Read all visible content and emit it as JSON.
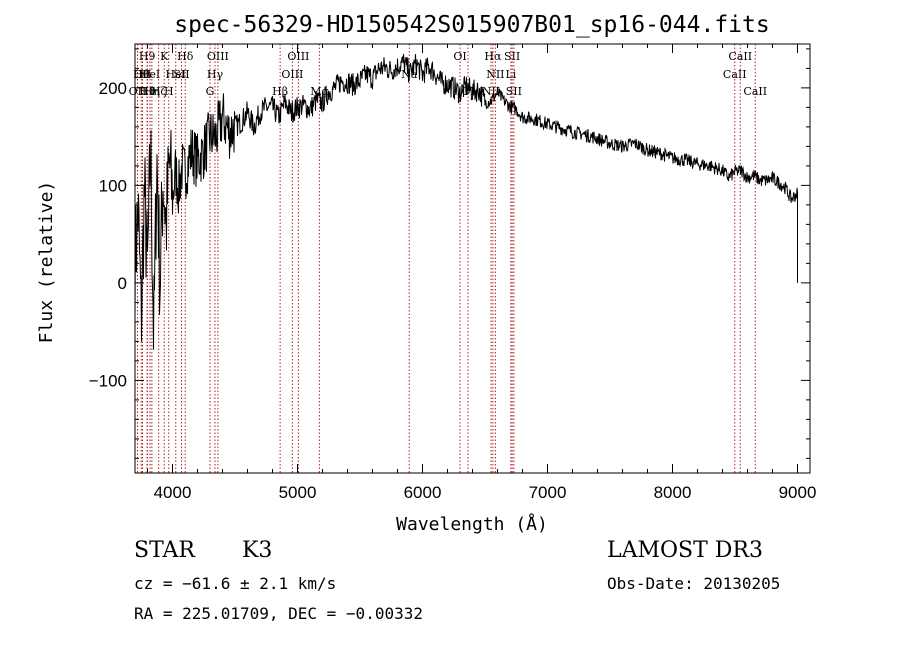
{
  "chart_data": {
    "type": "line",
    "title": "spec-56329-HD150542S015907B01_sp16-044.fits",
    "xlabel": "Wavelength (Å)",
    "ylabel": "Flux (relative)",
    "xlim": [
      3700,
      9100
    ],
    "ylim": [
      -195,
      245
    ],
    "xticks": [
      4000,
      5000,
      6000,
      7000,
      8000,
      9000
    ],
    "yticks": [
      -100,
      0,
      100,
      200
    ],
    "series": [
      {
        "name": "spectrum",
        "x": [
          3700,
          3725,
          3750,
          3775,
          3800,
          3825,
          3850,
          3875,
          3900,
          3925,
          3950,
          3975,
          4000,
          4025,
          4050,
          4075,
          4100,
          4150,
          4200,
          4250,
          4300,
          4350,
          4400,
          4450,
          4500,
          4550,
          4600,
          4650,
          4700,
          4750,
          4800,
          4850,
          4900,
          4950,
          5000,
          5050,
          5100,
          5150,
          5200,
          5250,
          5300,
          5350,
          5400,
          5450,
          5500,
          5550,
          5600,
          5650,
          5700,
          5750,
          5800,
          5850,
          5900,
          5950,
          6000,
          6050,
          6100,
          6150,
          6200,
          6250,
          6300,
          6350,
          6400,
          6450,
          6500,
          6550,
          6600,
          6650,
          6700,
          6750,
          6800,
          6900,
          7000,
          7100,
          7200,
          7300,
          7400,
          7500,
          7600,
          7700,
          7800,
          7900,
          8000,
          8100,
          8200,
          8300,
          8400,
          8450,
          8500,
          8550,
          8600,
          8650,
          8700,
          8750,
          8800,
          8850,
          8900,
          8950,
          9000,
          9000
        ],
        "y": [
          20,
          75,
          -40,
          95,
          10,
          140,
          -60,
          130,
          0,
          110,
          60,
          125,
          85,
          115,
          95,
          118,
          112,
          135,
          125,
          135,
          150,
          150,
          170,
          155,
          160,
          165,
          175,
          160,
          175,
          180,
          180,
          170,
          185,
          175,
          180,
          182,
          178,
          187,
          185,
          196,
          200,
          207,
          206,
          203,
          207,
          214,
          210,
          220,
          221,
          218,
          222,
          226,
          215,
          225,
          214,
          222,
          215,
          205,
          204,
          200,
          195,
          202,
          196,
          198,
          185,
          187,
          195,
          187,
          181,
          178,
          170,
          168,
          163,
          159,
          155,
          152,
          148,
          143,
          140,
          143,
          136,
          133,
          128,
          126,
          122,
          120,
          115,
          108,
          114,
          115,
          108,
          110,
          105,
          105,
          107,
          103,
          98,
          86,
          92,
          0
        ]
      }
    ],
    "spectral_lines": [
      {
        "wl": 3720,
        "label": "OII",
        "row": 2
      },
      {
        "wl": 3750,
        "label": "Hθ",
        "row": 1
      },
      {
        "wl": 3760,
        "label": "OII",
        "row": 1
      },
      {
        "wl": 3797,
        "label": "H9",
        "row": 0
      },
      {
        "wl": 3799,
        "label": "Hθ",
        "row": 2
      },
      {
        "wl": 3820,
        "label": "HeI",
        "row": 1
      },
      {
        "wl": 3835,
        "label": "Hη",
        "row": 2
      },
      {
        "wl": 3889,
        "label": "Hζ",
        "row": 2
      },
      {
        "wl": 3934,
        "label": "K",
        "row": 0
      },
      {
        "wl": 3970,
        "label": "H",
        "row": 2
      },
      {
        "wl": 4026,
        "label": "HeI",
        "row": 1
      },
      {
        "wl": 4072,
        "label": "SII",
        "row": 1
      },
      {
        "wl": 4102,
        "label": "Hδ",
        "row": 0
      },
      {
        "wl": 4300,
        "label": "G",
        "row": 2
      },
      {
        "wl": 4340,
        "label": "Hγ",
        "row": 1
      },
      {
        "wl": 4363,
        "label": "OIII",
        "row": 0
      },
      {
        "wl": 4861,
        "label": "Hβ",
        "row": 2
      },
      {
        "wl": 4959,
        "label": "OIII",
        "row": 1
      },
      {
        "wl": 5007,
        "label": "OIII",
        "row": 0
      },
      {
        "wl": 5175,
        "label": "Mg",
        "row": 2
      },
      {
        "wl": 5894,
        "label": "Na",
        "row": 1
      },
      {
        "wl": 6300,
        "label": "OI",
        "row": 0
      },
      {
        "wl": 6364,
        "label": "OI",
        "row": 2
      },
      {
        "wl": 6548,
        "label": "NII",
        "row": 2
      },
      {
        "wl": 6563,
        "label": "Hα",
        "row": 0
      },
      {
        "wl": 6583,
        "label": "NII",
        "row": 1
      },
      {
        "wl": 6707,
        "label": "Li",
        "row": 1
      },
      {
        "wl": 6717,
        "label": "SII",
        "row": 0
      },
      {
        "wl": 6731,
        "label": "SII",
        "row": 2
      },
      {
        "wl": 8498,
        "label": "CaII",
        "row": 1
      },
      {
        "wl": 8542,
        "label": "CaII",
        "row": 0
      },
      {
        "wl": 8662,
        "label": "CaII",
        "row": 2
      }
    ]
  },
  "info": {
    "object_class": "STAR",
    "subclass": "K3",
    "survey": "LAMOST DR3",
    "cz": "cz = −61.6 ± 2.1 km/s",
    "obs_date": "Obs-Date: 20130205",
    "coords": "RA = 225.01709, DEC =  −0.00332"
  },
  "colors": {
    "line_marker": "#b22222",
    "spectrum": "#000000"
  }
}
